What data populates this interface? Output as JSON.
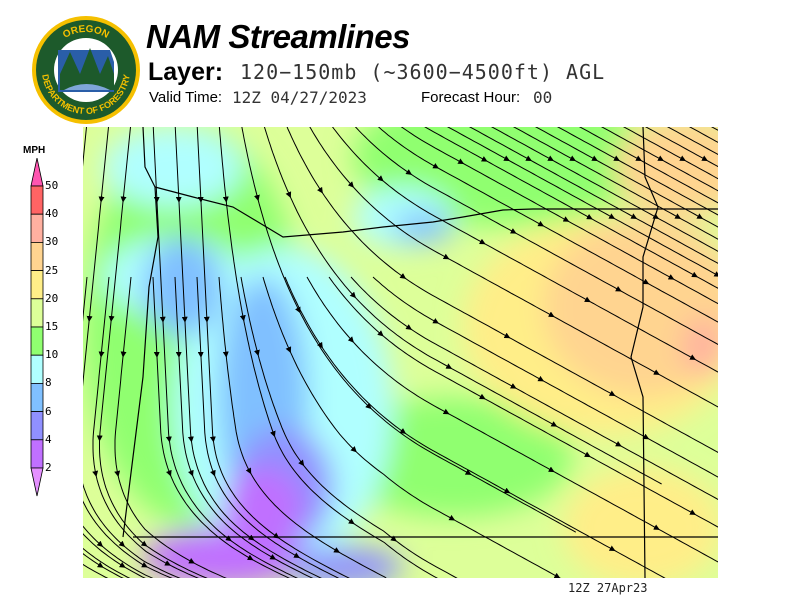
{
  "header": {
    "title": "NAM Streamlines",
    "layer_label": "Layer:",
    "layer_value": "120−150mb (~3600−4500ft) AGL",
    "valid_time_label": "Valid Time:",
    "valid_time_value": "12Z 04/27/2023",
    "forecast_hour_label": "Forecast Hour:",
    "forecast_hour_value": "00"
  },
  "logo": {
    "top_text": "OREGON",
    "ring_text": "DEPARTMENT OF FORESTRY"
  },
  "colorbar": {
    "unit": "MPH",
    "ticks": [
      "50",
      "40",
      "30",
      "25",
      "20",
      "15",
      "10",
      "8",
      "6",
      "4",
      "2"
    ],
    "over_color": "#ff55b0",
    "under_color": "#e590ff",
    "colors": [
      "#ff6464",
      "#ffb0a0",
      "#ffd490",
      "#ffee88",
      "#ddff99",
      "#90ff70",
      "#b0ffff",
      "#80c0ff",
      "#9090ff",
      "#c070ff"
    ]
  },
  "map": {
    "footer": "12Z 27Apr23"
  }
}
